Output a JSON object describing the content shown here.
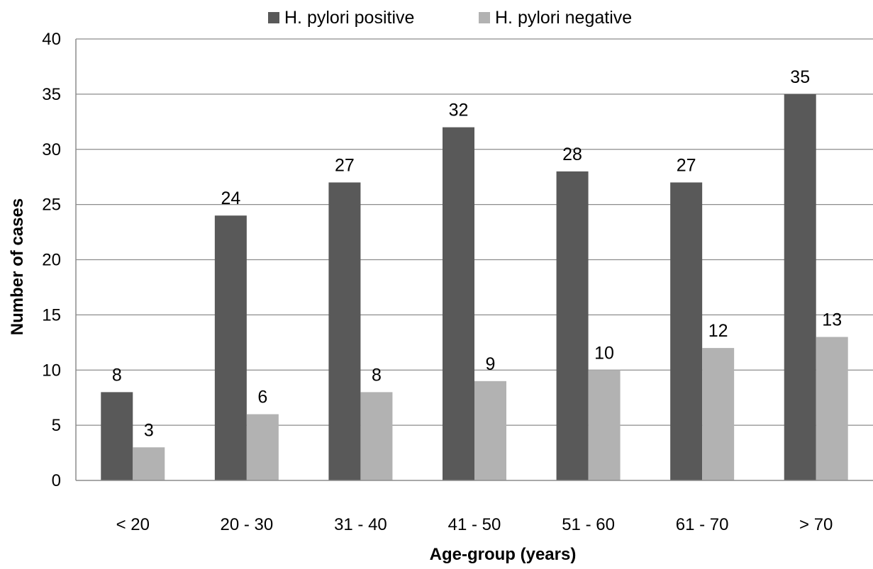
{
  "chart_data": {
    "type": "bar",
    "xlabel": "Age-group (years)",
    "ylabel": "Number of cases",
    "ylim": [
      0,
      40
    ],
    "ytick_step": 5,
    "grid": true,
    "legend_position": "top",
    "categories": [
      "< 20",
      "20 - 30",
      "31 - 40",
      "41 - 50",
      "51 - 60",
      "61 - 70",
      "> 70"
    ],
    "series": [
      {
        "name": "H. pylori positive",
        "color": "#595959",
        "values": [
          8,
          24,
          27,
          32,
          28,
          27,
          35
        ]
      },
      {
        "name": "H. pylori negative",
        "color": "#b2b2b2",
        "values": [
          3,
          6,
          8,
          9,
          10,
          12,
          13
        ]
      }
    ]
  }
}
